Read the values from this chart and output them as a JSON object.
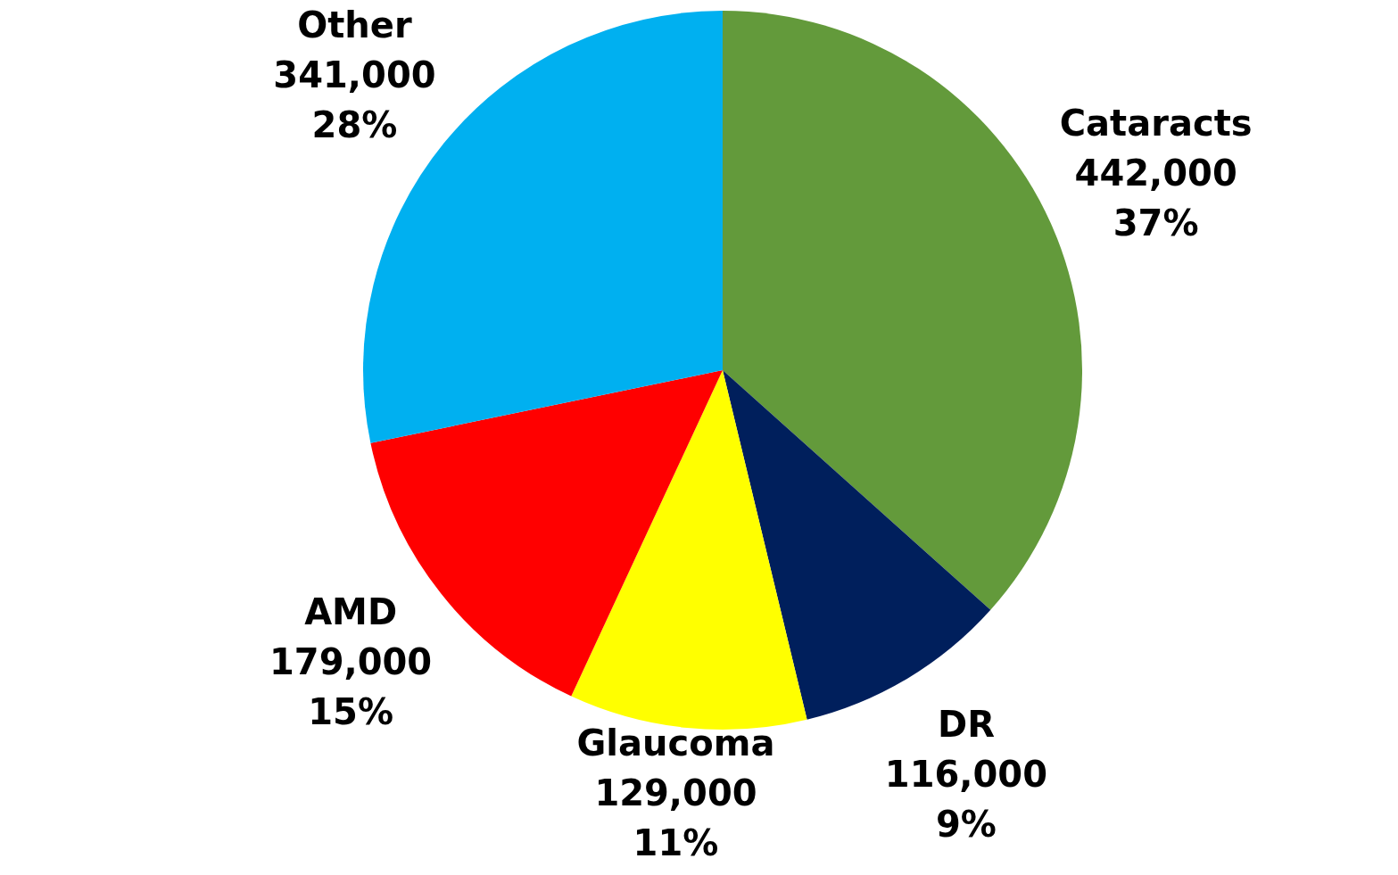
{
  "chart_data": {
    "type": "pie",
    "categories": [
      "Cataracts",
      "DR",
      "Glaucoma",
      "AMD",
      "Other"
    ],
    "values": [
      442000,
      116000,
      129000,
      179000,
      341000
    ],
    "colors": [
      "#639a3b",
      "#001f5c",
      "#ffff00",
      "#ff0000",
      "#00b0f0"
    ],
    "value_labels": [
      "442,000\n37%",
      "116,000\n9%",
      "129,000\n11%",
      "179,000\n15%",
      "341,000\n28%"
    ],
    "legend": false
  }
}
